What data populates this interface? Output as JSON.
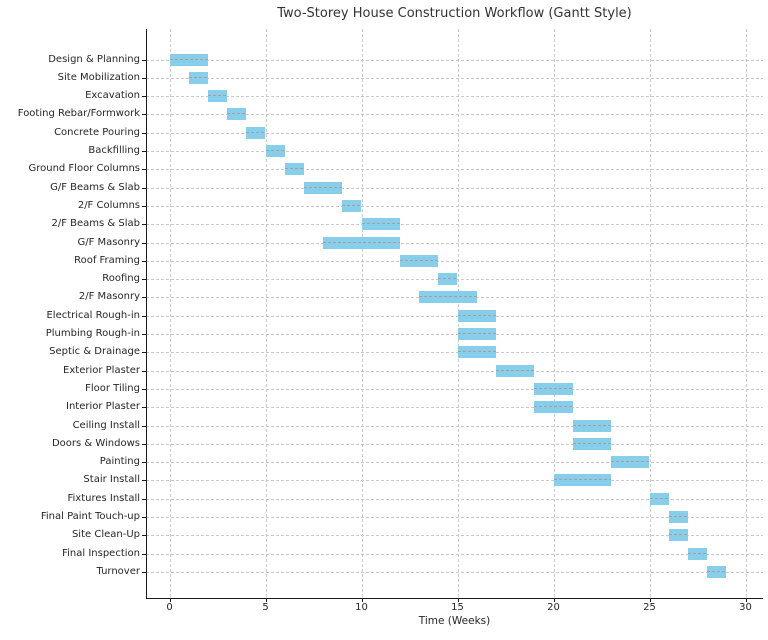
{
  "chart_data": {
    "type": "bar",
    "subtype": "gantt-horizontal",
    "title": "Two-Storey House Construction Workflow (Gantt Style)",
    "xlabel": "Time (Weeks)",
    "ylabel": "",
    "x_ticks": [
      0,
      5,
      10,
      15,
      20,
      25,
      30
    ],
    "xlim": [
      -1.2,
      30.9
    ],
    "grid": true,
    "legend": false,
    "bar_color": "#87CEEB",
    "grid_color": "#c9c9c9",
    "axis_color": "#1a1a1a",
    "text_color": "#262626",
    "unit": "weeks",
    "tasks": [
      {
        "label": "Design & Planning",
        "start": 0,
        "end": 2
      },
      {
        "label": "Site Mobilization",
        "start": 1,
        "end": 2
      },
      {
        "label": "Excavation",
        "start": 2,
        "end": 3
      },
      {
        "label": "Footing Rebar/Formwork",
        "start": 3,
        "end": 4
      },
      {
        "label": "Concrete Pouring",
        "start": 4,
        "end": 5
      },
      {
        "label": "Backfilling",
        "start": 5,
        "end": 6
      },
      {
        "label": "Ground Floor Columns",
        "start": 6,
        "end": 7
      },
      {
        "label": "G/F Beams & Slab",
        "start": 7,
        "end": 9
      },
      {
        "label": "2/F Columns",
        "start": 9,
        "end": 10
      },
      {
        "label": "2/F Beams & Slab",
        "start": 10,
        "end": 12
      },
      {
        "label": "G/F Masonry",
        "start": 8,
        "end": 12
      },
      {
        "label": "Roof Framing",
        "start": 12,
        "end": 14
      },
      {
        "label": "Roofing",
        "start": 14,
        "end": 15
      },
      {
        "label": "2/F Masonry",
        "start": 13,
        "end": 16
      },
      {
        "label": "Electrical Rough-in",
        "start": 15,
        "end": 17
      },
      {
        "label": "Plumbing Rough-in",
        "start": 15,
        "end": 17
      },
      {
        "label": "Septic & Drainage",
        "start": 15,
        "end": 17
      },
      {
        "label": "Exterior Plaster",
        "start": 17,
        "end": 19
      },
      {
        "label": "Floor Tiling",
        "start": 19,
        "end": 21
      },
      {
        "label": "Interior Plaster",
        "start": 19,
        "end": 21
      },
      {
        "label": "Ceiling Install",
        "start": 21,
        "end": 23
      },
      {
        "label": "Doors & Windows",
        "start": 21,
        "end": 23
      },
      {
        "label": "Painting",
        "start": 23,
        "end": 25
      },
      {
        "label": "Stair Install",
        "start": 20,
        "end": 23
      },
      {
        "label": "Fixtures Install",
        "start": 25,
        "end": 26
      },
      {
        "label": "Final Paint Touch-up",
        "start": 26,
        "end": 27
      },
      {
        "label": "Site Clean-Up",
        "start": 26,
        "end": 27
      },
      {
        "label": "Final Inspection",
        "start": 27,
        "end": 28
      },
      {
        "label": "Turnover",
        "start": 28,
        "end": 29
      }
    ]
  }
}
